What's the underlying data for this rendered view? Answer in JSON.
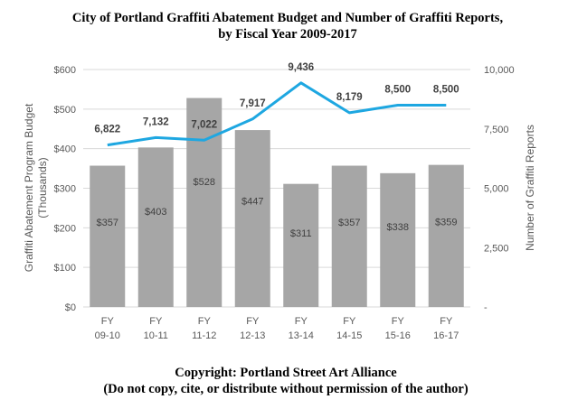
{
  "chart_data": {
    "type": "bar",
    "title_line1": "City of Portland Graffiti Abatement Budget and Number of Graffiti Reports,",
    "title_line2": "by Fiscal Year 2009-2017",
    "categories": [
      [
        "FY",
        "09-10"
      ],
      [
        "FY",
        "10-11"
      ],
      [
        "FY",
        "11-12"
      ],
      [
        "FY",
        "12-13"
      ],
      [
        "FY",
        "13-14"
      ],
      [
        "FY",
        "14-15"
      ],
      [
        "FY",
        "15-16"
      ],
      [
        "FY",
        "16-17"
      ]
    ],
    "series": [
      {
        "type": "bar",
        "axis": "left",
        "values": [
          357,
          403,
          528,
          447,
          311,
          357,
          338,
          359
        ],
        "labels": [
          "$357",
          "$403",
          "$528",
          "$447",
          "$311",
          "$357",
          "$338",
          "$359"
        ],
        "color": "#a6a6a6"
      },
      {
        "type": "line",
        "axis": "right",
        "values": [
          6822,
          7132,
          7022,
          7917,
          9436,
          8179,
          8500,
          8500
        ],
        "labels": [
          "6,822",
          "7,132",
          "7,022",
          "7,917",
          "9,436",
          "8,179",
          "8,500",
          "8,500"
        ],
        "color": "#1ea7e1"
      }
    ],
    "y_left": {
      "label_line1": "Graffiti Abatement Program Budget",
      "label_line2": "(Thousands)",
      "ylim": [
        0,
        600
      ],
      "ticks": [
        0,
        100,
        200,
        300,
        400,
        500,
        600
      ],
      "tick_labels": [
        "$0",
        "$100",
        "$200",
        "$300",
        "$400",
        "$500",
        "$600"
      ]
    },
    "y_right": {
      "label": "Number of Graffiti Reports",
      "ylim": [
        0,
        10000
      ],
      "ticks": [
        0,
        2500,
        5000,
        7500,
        10000
      ],
      "tick_labels": [
        "-",
        "2,500",
        "5,000",
        "7,500",
        "10,000"
      ]
    },
    "grid": true,
    "legend": "none"
  },
  "footer": {
    "line1": "Copyright: Portland Street Art Alliance",
    "line2": "(Do not copy, cite, or distribute without permission of the author)"
  },
  "colors": {
    "gridline": "#d9d9d9",
    "text": "#595959",
    "title": "#000000"
  }
}
